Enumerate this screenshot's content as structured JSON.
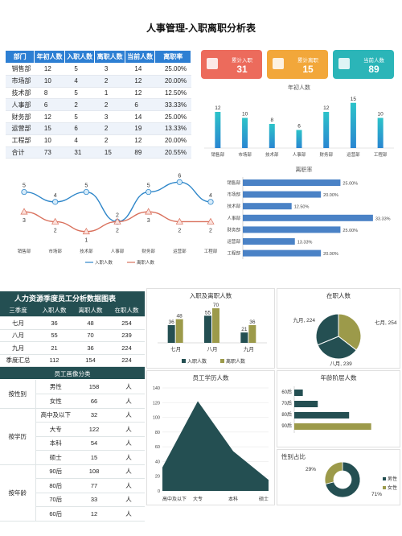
{
  "title": "人事管理-入职离职分析表",
  "dept_table": {
    "headers": [
      "部门",
      "年初人数",
      "入职人数",
      "离职人数",
      "当前人数",
      "离职率"
    ],
    "rows": [
      [
        "销售部",
        "12",
        "5",
        "3",
        "14",
        "25.00%"
      ],
      [
        "市场部",
        "10",
        "4",
        "2",
        "12",
        "20.00%"
      ],
      [
        "技术部",
        "8",
        "5",
        "1",
        "12",
        "12.50%"
      ],
      [
        "人事部",
        "6",
        "2",
        "2",
        "6",
        "33.33%"
      ],
      [
        "财务部",
        "12",
        "5",
        "3",
        "14",
        "25.00%"
      ],
      [
        "运营部",
        "15",
        "6",
        "2",
        "19",
        "13.33%"
      ],
      [
        "工程部",
        "10",
        "4",
        "2",
        "12",
        "20.00%"
      ],
      [
        "合计",
        "73",
        "31",
        "15",
        "89",
        "20.55%"
      ]
    ]
  },
  "cards": [
    {
      "label": "累计入职",
      "value": "31",
      "color": "#ec6b5c"
    },
    {
      "label": "累计离职",
      "value": "15",
      "color": "#f2a73a"
    },
    {
      "label": "当前人数",
      "value": "89",
      "color": "#2bb5b8"
    }
  ],
  "chart_data": [
    {
      "type": "bar",
      "title": "年初人数",
      "categories": [
        "销售部",
        "市场部",
        "技术部",
        "人事部",
        "财务部",
        "运营部",
        "工程部"
      ],
      "values": [
        12,
        10,
        8,
        6,
        12,
        15,
        10
      ],
      "ylim": [
        0,
        16
      ]
    },
    {
      "type": "line",
      "categories": [
        "销售部",
        "市场部",
        "技术部",
        "人事部",
        "财务部",
        "运营部",
        "工程部"
      ],
      "series": [
        {
          "name": "入职人数",
          "values": [
            5,
            4,
            5,
            2,
            5,
            6,
            4
          ],
          "color": "#2e86c9"
        },
        {
          "name": "离职人数",
          "values": [
            3,
            2,
            1,
            2,
            3,
            2,
            2
          ],
          "color": "#d9705c"
        }
      ],
      "ylim": [
        0,
        7
      ]
    },
    {
      "type": "bar",
      "title": "离职率",
      "orientation": "horizontal",
      "categories": [
        "销售部",
        "市场部",
        "技术部",
        "人事部",
        "财务部",
        "运营部",
        "工程部"
      ],
      "values": [
        25.0,
        20.0,
        12.5,
        33.33,
        25.0,
        13.33,
        20.0
      ],
      "labels": [
        "25.00%",
        "20.00%",
        "12.50%",
        "33.33%",
        "25.00%",
        "13.33%",
        "20.00%"
      ],
      "xlim": [
        0,
        35
      ]
    },
    {
      "type": "bar",
      "title": "入职及离职人数",
      "categories": [
        "七月",
        "八月",
        "九月"
      ],
      "series": [
        {
          "name": "入职人数",
          "values": [
            36,
            55,
            21
          ],
          "color": "#244f52"
        },
        {
          "name": "离职人数",
          "values": [
            48,
            70,
            36
          ],
          "color": "#9c9a4a"
        }
      ],
      "ylim": [
        0,
        75
      ]
    },
    {
      "type": "pie",
      "title": "在职人数",
      "labels": [
        "七月, 254",
        "八月, 239",
        "九月, 224"
      ],
      "values": [
        254,
        239,
        224
      ],
      "colors": [
        "#9c9a4a",
        "#244f52",
        "#244f52"
      ]
    },
    {
      "type": "area",
      "title": "员工学历人数",
      "categories": [
        "高中及以下",
        "大专",
        "本科",
        "硕士"
      ],
      "values": [
        32,
        122,
        54,
        15
      ],
      "yticks": [
        "0",
        "20",
        "40",
        "60",
        "80",
        "100",
        "120",
        "140"
      ],
      "ylim": [
        0,
        140
      ]
    },
    {
      "type": "bar",
      "title": "年龄阶层人数",
      "orientation": "horizontal",
      "categories": [
        "60后",
        "70后",
        "80后",
        "90后"
      ],
      "values": [
        12,
        33,
        77,
        108
      ],
      "colors": [
        "#244f52",
        "#244f52",
        "#244f52",
        "#9c9a4a"
      ],
      "xlim": [
        0,
        140
      ]
    },
    {
      "type": "pie",
      "title": "性别占比",
      "labels": [
        "男性",
        "女性"
      ],
      "values": [
        71,
        29
      ],
      "value_labels": [
        "71%",
        "29%"
      ],
      "colors": [
        "#244f52",
        "#9c9a4a"
      ]
    }
  ],
  "quarter_table": {
    "title": "人力资源季度员工分析数据图表",
    "headers": [
      "三季度",
      "入职人数",
      "离职人数",
      "在职人数"
    ],
    "rows": [
      [
        "七月",
        "36",
        "48",
        "254"
      ],
      [
        "八月",
        "55",
        "70",
        "239"
      ],
      [
        "九月",
        "21",
        "36",
        "224"
      ],
      [
        "季度汇总",
        "112",
        "154",
        "224"
      ]
    ]
  },
  "profile_table": {
    "title": "员工画像分类",
    "groups": [
      {
        "name": "按性别",
        "rows": [
          [
            "男性",
            "158",
            "人"
          ],
          [
            "女性",
            "66",
            "人"
          ]
        ]
      },
      {
        "name": "按学历",
        "rows": [
          [
            "高中及以下",
            "32",
            "人"
          ],
          [
            "大专",
            "122",
            "人"
          ],
          [
            "本科",
            "54",
            "人"
          ],
          [
            "硕士",
            "15",
            "人"
          ]
        ]
      },
      {
        "name": "按年龄",
        "rows": [
          [
            "90后",
            "108",
            "人"
          ],
          [
            "80后",
            "77",
            "人"
          ],
          [
            "70后",
            "33",
            "人"
          ],
          [
            "60后",
            "12",
            "人"
          ]
        ]
      }
    ]
  }
}
